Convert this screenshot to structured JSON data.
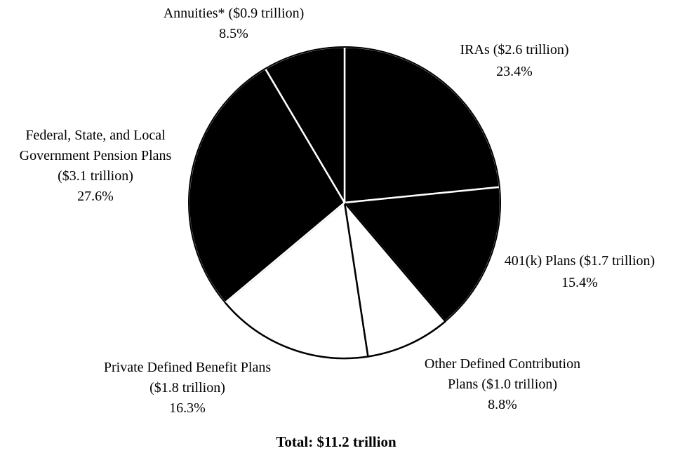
{
  "chart_data": {
    "type": "pie",
    "title": "",
    "total_label": "Total: $11.2 trillion",
    "slices": [
      {
        "name": "IRAs",
        "amount_trillions": 2.6,
        "percent": 23.4,
        "label_lines": [
          "IRAs ($2.6 trillion)",
          "23.4%"
        ],
        "fill": "#000000",
        "outline": "#ffffff"
      },
      {
        "name": "401(k) Plans",
        "amount_trillions": 1.7,
        "percent": 15.4,
        "label_lines": [
          "401(k) Plans ($1.7 trillion)",
          "15.4%"
        ],
        "fill": "#000000",
        "outline": "#ffffff"
      },
      {
        "name": "Other Defined Contribution Plans",
        "amount_trillions": 1.0,
        "percent": 8.8,
        "label_lines": [
          "Other Defined Contribution",
          "Plans ($1.0 trillion)",
          "8.8%"
        ],
        "fill": "#ffffff",
        "outline": "#000000"
      },
      {
        "name": "Private Defined Benefit Plans",
        "amount_trillions": 1.8,
        "percent": 16.3,
        "label_lines": [
          "Private Defined Benefit Plans",
          "($1.8 trillion)",
          "16.3%"
        ],
        "fill": "#ffffff",
        "outline": "#000000"
      },
      {
        "name": "Federal, State, and Local Government Pension Plans",
        "amount_trillions": 3.1,
        "percent": 27.6,
        "label_lines": [
          "Federal, State, and Local",
          "Government Pension Plans",
          "($3.1 trillion)",
          "27.6%"
        ],
        "fill": "#000000",
        "outline": "#ffffff"
      },
      {
        "name": "Annuities*",
        "amount_trillions": 0.9,
        "percent": 8.5,
        "label_lines": [
          "Annuities* ($0.9 trillion)",
          "8.5%"
        ],
        "fill": "#000000",
        "outline": "#ffffff"
      }
    ],
    "start_angle_deg": 0,
    "direction": "clockwise",
    "legend": "none",
    "grid": false
  }
}
